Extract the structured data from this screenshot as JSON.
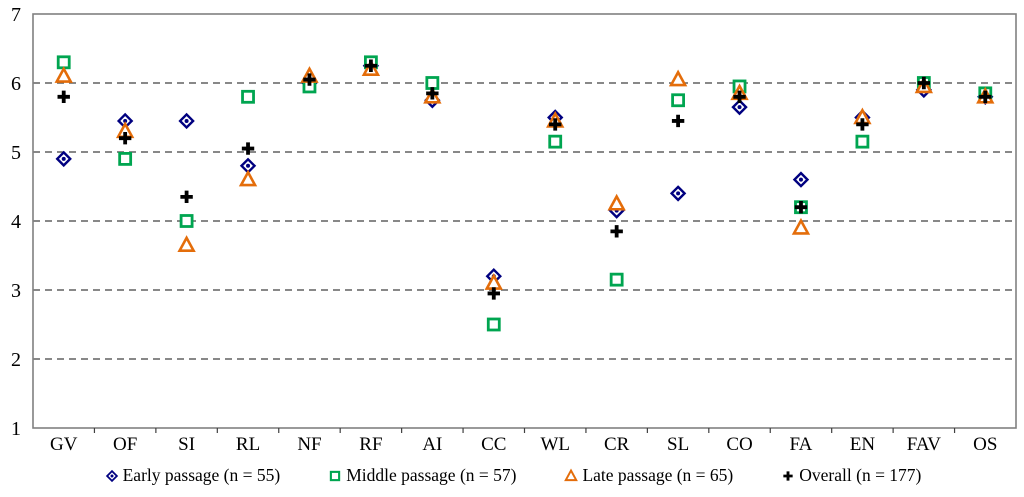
{
  "chart_data": {
    "type": "scatter",
    "title": "",
    "xlabel": "",
    "ylabel": "",
    "categories": [
      "GV",
      "OF",
      "SI",
      "RL",
      "NF",
      "RF",
      "AI",
      "CC",
      "WL",
      "CR",
      "SL",
      "CO",
      "FA",
      "EN",
      "FAV",
      "OS"
    ],
    "ylim": [
      1,
      7
    ],
    "yticks": [
      1,
      2,
      3,
      4,
      5,
      6,
      7
    ],
    "gridlines": [
      2,
      3,
      4,
      5,
      6
    ],
    "grid_style": "horizontal dashed",
    "legend_position": "bottom",
    "frame_color": "#808080",
    "gridline_color": "#404040",
    "series": [
      {
        "name": "Early passage (n = 55)",
        "marker": "diamond",
        "color": "#000080",
        "values": [
          4.9,
          5.45,
          5.45,
          4.8,
          6.0,
          6.25,
          5.75,
          3.2,
          5.5,
          4.15,
          4.4,
          5.65,
          4.6,
          5.5,
          5.9,
          5.8
        ]
      },
      {
        "name": "Middle passage (n = 57)",
        "marker": "square",
        "color": "#00A550",
        "values": [
          6.3,
          4.9,
          4.0,
          5.8,
          5.95,
          6.3,
          6.0,
          2.5,
          5.15,
          3.15,
          5.75,
          5.95,
          4.2,
          5.15,
          6.0,
          5.85
        ]
      },
      {
        "name": "Late passage (n = 65)",
        "marker": "triangle",
        "color": "#E46D0A",
        "values": [
          6.1,
          5.3,
          3.65,
          4.6,
          6.1,
          6.2,
          5.8,
          3.1,
          5.45,
          4.25,
          6.05,
          5.85,
          3.9,
          5.5,
          5.95,
          5.8
        ]
      },
      {
        "name": "Overall (n = 177)",
        "marker": "plus",
        "color": "#000000",
        "values": [
          5.8,
          5.2,
          4.35,
          5.05,
          6.05,
          6.25,
          5.85,
          2.95,
          5.4,
          3.85,
          5.45,
          5.8,
          4.2,
          5.4,
          6.0,
          5.8
        ]
      }
    ]
  }
}
